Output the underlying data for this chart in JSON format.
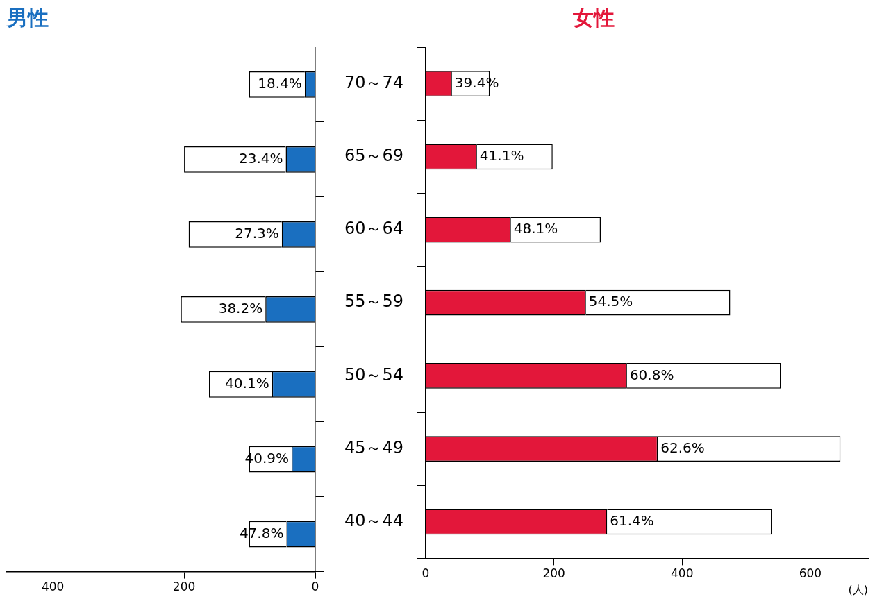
{
  "chart_data": [
    {
      "type": "bar",
      "orientation": "horizontal",
      "stacked": true,
      "title": "男性",
      "categories": [
        null,
        null,
        null,
        null,
        null,
        null,
        null
      ],
      "series": [
        {
          "color": "#1a6fc0",
          "values": [
            16,
            45,
            51,
            76,
            66,
            36,
            44
          ]
        },
        {
          "color": "#ffffff",
          "values": [
            85,
            155,
            142,
            129,
            96,
            65,
            57
          ]
        }
      ],
      "annotations": [
        {
          "text": "18.4%",
          "x": 16
        },
        {
          "text": "23.4%",
          "x": 45
        },
        {
          "text": "27.3%",
          "x": 51
        },
        {
          "text": "38.2%",
          "x": 76
        },
        {
          "text": "40.1%",
          "x": 66
        },
        {
          "text": "40.9%",
          "x": 36
        },
        {
          "text": "47.8%",
          "x": 44
        }
      ],
      "xlim": [
        470,
        0
      ],
      "xticks": [
        0,
        200,
        400
      ],
      "tick_labels": "x",
      "legend": false,
      "grid": false
    },
    {
      "type": "bar",
      "orientation": "horizontal",
      "stacked": true,
      "title": "女性",
      "xlabel": "(人)",
      "categories": [
        "70～74",
        "65～69",
        "60～64",
        "55～59",
        "50～54",
        "45～49",
        "40～44"
      ],
      "series": [
        {
          "color": "#e3173a",
          "values": [
            41,
            80,
            133,
            250,
            314,
            362,
            283
          ]
        },
        {
          "color": "#ffffff",
          "values": [
            59,
            118,
            140,
            225,
            240,
            285,
            257
          ]
        }
      ],
      "annotations": [
        {
          "text": "39.4%",
          "x": 41,
          "y": "70～74"
        },
        {
          "text": "41.1%",
          "x": 80,
          "y": "65～69"
        },
        {
          "text": "48.1%",
          "x": 133,
          "y": "60～64"
        },
        {
          "text": "54.5%",
          "x": 250,
          "y": "55～59"
        },
        {
          "text": "60.8%",
          "x": 314,
          "y": "50～54"
        },
        {
          "text": "62.6%",
          "x": 362,
          "y": "45～49"
        },
        {
          "text": "61.4%",
          "x": 283,
          "y": "40～44"
        }
      ],
      "xlim": [
        0,
        690
      ],
      "xticks": [
        0,
        200,
        400,
        600
      ],
      "legend": false,
      "grid": false
    }
  ]
}
